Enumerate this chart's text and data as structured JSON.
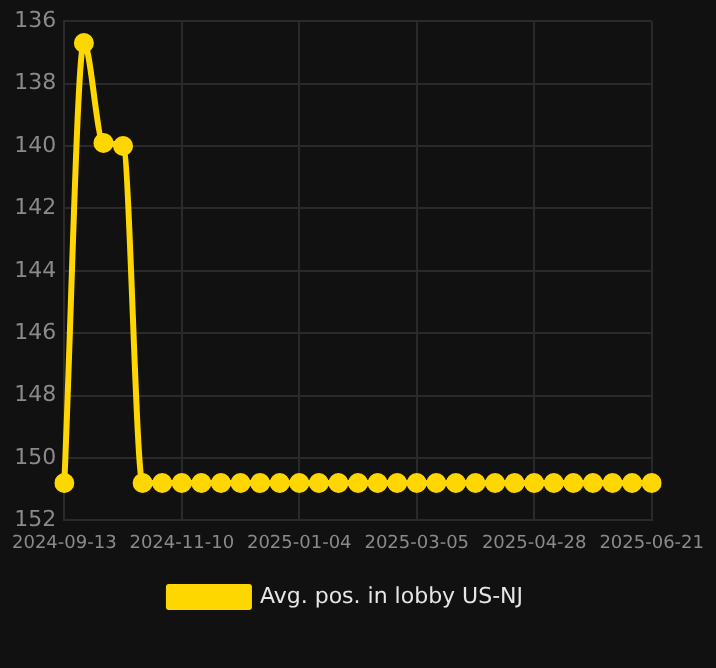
{
  "chart_data": {
    "type": "line",
    "categories": [
      "2024-09-13",
      null,
      null,
      null,
      null,
      null,
      "2024-11-10",
      null,
      null,
      null,
      null,
      null,
      "2025-01-04",
      null,
      null,
      null,
      null,
      null,
      "2025-03-05",
      null,
      null,
      null,
      null,
      null,
      "2025-04-28",
      null,
      null,
      null,
      null,
      null,
      "2025-06-21"
    ],
    "series": [
      {
        "name": "Avg. pos. in lobby US-NJ",
        "color": "#ffd700",
        "values": [
          150.8,
          136.7,
          139.9,
          140,
          150.8,
          150.8,
          150.8,
          150.8,
          150.8,
          150.8,
          150.8,
          150.8,
          150.8,
          150.8,
          150.8,
          150.8,
          150.8,
          150.8,
          150.8,
          150.8,
          150.8,
          150.8,
          150.8,
          150.8,
          150.8,
          150.8,
          150.8,
          150.8,
          150.8,
          150.8,
          150.8
        ]
      }
    ],
    "ylim": [
      152,
      136
    ],
    "yticks": [
      136,
      138,
      140,
      142,
      144,
      146,
      148,
      150,
      152
    ],
    "grid": true,
    "legend": "bottom",
    "marker": "circle",
    "line_style": "solid"
  }
}
